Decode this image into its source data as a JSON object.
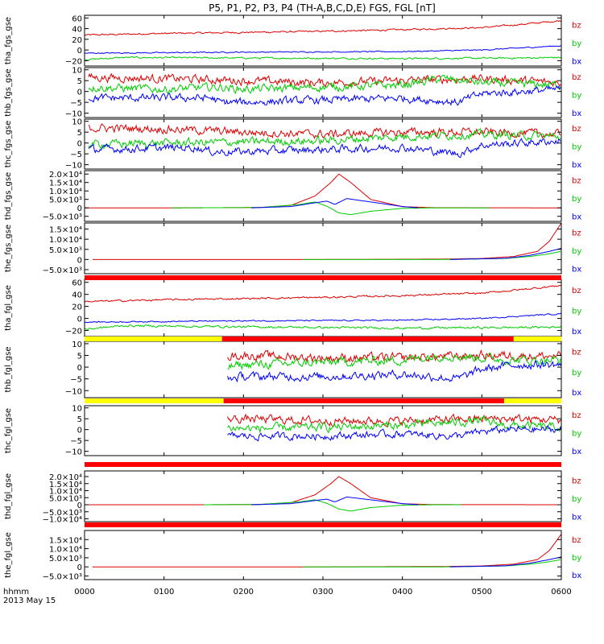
{
  "title": "P5, P1, P2, P3, P4 (TH-A,B,C,D,E) FGS, FGL [nT]",
  "colors": {
    "bx": "#0000ff",
    "by": "#00cc00",
    "bz": "#dd0000",
    "bar_red": "#ff0000",
    "bar_yellow": "#ffff00"
  },
  "time_axis": {
    "header_line1": "hhmm",
    "header_line2": "2013 May 15",
    "ticks": [
      "0000",
      "0100",
      "0200",
      "0300",
      "0400",
      "0500",
      "0600"
    ],
    "range_hours": [
      0,
      6
    ]
  },
  "chart_data": [
    {
      "type": "line",
      "ylabel": "tha_fgs_gse",
      "yticks": [
        {
          "v": 60,
          "t": "60"
        },
        {
          "v": 40,
          "t": "40"
        },
        {
          "v": 20,
          "t": "20"
        },
        {
          "v": 0,
          "t": "0"
        },
        {
          "v": -20,
          "t": "−20"
        }
      ],
      "ylim": [
        -30,
        65
      ],
      "legend": [
        "bz",
        "by",
        "bx"
      ],
      "series": [
        {
          "name": "bz",
          "x": [
            0,
            1,
            2,
            3,
            4,
            5,
            5.5,
            6
          ],
          "y": [
            28,
            31,
            33,
            35,
            38,
            42,
            48,
            55
          ],
          "noise": 1.2
        },
        {
          "name": "by",
          "x": [
            0,
            0.5,
            2,
            4,
            5.5,
            6
          ],
          "y": [
            -18,
            -14,
            -15,
            -16,
            -15,
            -14
          ],
          "noise": 1.2
        },
        {
          "name": "bx",
          "x": [
            0,
            2,
            4,
            5,
            6
          ],
          "y": [
            -6,
            -4,
            -3,
            0,
            8
          ],
          "noise": 0.8
        }
      ]
    },
    {
      "type": "line",
      "ylabel": "thb_fgs_gse",
      "yticks": [
        {
          "v": 10,
          "t": "10"
        },
        {
          "v": 5,
          "t": "5"
        },
        {
          "v": 0,
          "t": "0"
        },
        {
          "v": -5,
          "t": "−5"
        },
        {
          "v": -10,
          "t": "−10"
        }
      ],
      "ylim": [
        -12,
        11
      ],
      "legend": [
        "bz",
        "by",
        "bx"
      ],
      "series": [
        {
          "name": "bz",
          "x": [
            0.05,
            1,
            2,
            3,
            4,
            5,
            6
          ],
          "y": [
            6.5,
            6,
            5,
            4,
            5,
            6,
            4
          ],
          "noise": 1.5
        },
        {
          "name": "by",
          "x": [
            0.05,
            1,
            1.7,
            2,
            3,
            4,
            4.5,
            5,
            6
          ],
          "y": [
            2,
            1,
            2,
            1,
            2,
            3,
            6,
            4,
            3
          ],
          "noise": 1.5
        },
        {
          "name": "bx",
          "x": [
            0.05,
            1,
            1.6,
            1.7,
            2,
            3,
            4,
            4.7,
            5,
            6
          ],
          "y": [
            -3,
            -3,
            -3,
            -5,
            -5,
            -4,
            -3,
            -5,
            -1,
            1
          ],
          "noise": 1.4
        }
      ]
    },
    {
      "type": "line",
      "ylabel": "thc_fgs_gse",
      "yticks": [
        {
          "v": 10,
          "t": "10"
        },
        {
          "v": 5,
          "t": "5"
        },
        {
          "v": 0,
          "t": "0"
        },
        {
          "v": -5,
          "t": "−5"
        },
        {
          "v": -10,
          "t": "−10"
        }
      ],
      "ylim": [
        -12,
        11
      ],
      "legend": [
        "bz",
        "by",
        "bx"
      ],
      "series": [
        {
          "name": "bz",
          "x": [
            0.05,
            1,
            2,
            3,
            4,
            5,
            6
          ],
          "y": [
            7,
            6.5,
            5,
            4,
            5,
            5,
            4
          ],
          "noise": 1.5
        },
        {
          "name": "by",
          "x": [
            0.05,
            1,
            2,
            3,
            4,
            5,
            6
          ],
          "y": [
            -0.5,
            0,
            0.5,
            1,
            3,
            4,
            3
          ],
          "noise": 1.5
        },
        {
          "name": "bx",
          "x": [
            0.05,
            1.4,
            1.6,
            2,
            3,
            4,
            4.7,
            5,
            6
          ],
          "y": [
            -3,
            -2,
            -4,
            -4,
            -3,
            -2,
            -5,
            -1,
            1
          ],
          "noise": 1.4
        }
      ]
    },
    {
      "type": "line",
      "ylabel": "thd_fgs_gse",
      "yticks": [
        {
          "v": 20000,
          "t": "2.0×10⁴"
        },
        {
          "v": 15000,
          "t": "1.5×10⁴"
        },
        {
          "v": 10000,
          "t": "1.0×10⁴"
        },
        {
          "v": 5000,
          "t": "5.0×10³"
        },
        {
          "v": 0,
          "t": "0"
        },
        {
          "v": -5000,
          "t": "−5.0×10³"
        }
      ],
      "ylim": [
        -8000,
        22000
      ],
      "legend": [
        "bz",
        "by",
        "bx"
      ],
      "series": [
        {
          "name": "bz",
          "x": [
            0,
            1.1,
            2.2,
            2.6,
            2.9,
            3.1,
            3.2,
            3.35,
            3.6,
            4,
            4.4,
            6
          ],
          "y": [
            0,
            0,
            200,
            1500,
            7000,
            15000,
            20000,
            15000,
            5000,
            700,
            100,
            0
          ],
          "noise": 0
        },
        {
          "name": "by",
          "x": [
            1.1,
            2.2,
            2.7,
            2.9,
            3.05,
            3.2,
            3.35,
            3.6,
            4,
            4.4,
            5.1
          ],
          "y": [
            0,
            200,
            2000,
            3500,
            1000,
            -3000,
            -4000,
            -2000,
            -300,
            0,
            0
          ],
          "noise": 0
        },
        {
          "name": "bx",
          "x": [
            2.1,
            2.6,
            2.9,
            3.05,
            3.15,
            3.3,
            3.6,
            4,
            4.2
          ],
          "y": [
            0,
            800,
            3000,
            4000,
            2000,
            5500,
            3500,
            800,
            0
          ],
          "noise": 0
        }
      ]
    },
    {
      "type": "line",
      "ylabel": "the_fgs_gse",
      "yticks": [
        {
          "v": 15000,
          "t": "1.5×10⁴"
        },
        {
          "v": 10000,
          "t": "1.0×10⁴"
        },
        {
          "v": 5000,
          "t": "5.0×10³"
        },
        {
          "v": 0,
          "t": "0"
        },
        {
          "v": -5000,
          "t": "−5.0×10³"
        }
      ],
      "ylim": [
        -7000,
        18000
      ],
      "legend": [
        "bz",
        "by",
        "bx"
      ],
      "series": [
        {
          "name": "bz",
          "x": [
            0.1,
            3,
            4.5,
            5,
            5.4,
            5.7,
            5.85,
            6
          ],
          "y": [
            0,
            0,
            200,
            500,
            1500,
            4000,
            9000,
            18000
          ],
          "noise": 0
        },
        {
          "name": "by",
          "x": [
            2.75,
            4.5,
            5.3,
            5.6,
            5.8,
            6
          ],
          "y": [
            0,
            0,
            500,
            1500,
            2500,
            4000
          ],
          "noise": 0
        },
        {
          "name": "bx",
          "x": [
            4.6,
            5.3,
            5.6,
            5.85,
            6
          ],
          "y": [
            0,
            600,
            2000,
            4000,
            5500
          ],
          "noise": 0
        }
      ]
    },
    {
      "type": "line",
      "ylabel": "tha_fgl_gse",
      "yticks": [
        {
          "v": 60,
          "t": "60"
        },
        {
          "v": 40,
          "t": "40"
        },
        {
          "v": 20,
          "t": "20"
        },
        {
          "v": 0,
          "t": "0"
        },
        {
          "v": -20,
          "t": "−20"
        }
      ],
      "ylim": [
        -30,
        65
      ],
      "legend": [
        "bz",
        "by",
        "bx"
      ],
      "series": [
        {
          "name": "bz",
          "x": [
            0,
            1,
            2,
            3,
            4,
            5,
            5.5,
            6
          ],
          "y": [
            28,
            31,
            33,
            35,
            38,
            42,
            48,
            55
          ],
          "noise": 1.2
        },
        {
          "name": "by",
          "x": [
            0,
            0.5,
            2,
            4,
            5.5,
            6
          ],
          "y": [
            -18,
            -12,
            -14,
            -16,
            -15,
            -14
          ],
          "noise": 1.4
        },
        {
          "name": "bx",
          "x": [
            0,
            2,
            4,
            5,
            6
          ],
          "y": [
            -6,
            -4,
            -3,
            0,
            8
          ],
          "noise": 0.8
        }
      ]
    },
    {
      "type": "line",
      "ylabel": "thb_fgl_gse",
      "yticks": [
        {
          "v": 10,
          "t": "10"
        },
        {
          "v": 5,
          "t": "5"
        },
        {
          "v": 0,
          "t": "0"
        },
        {
          "v": -5,
          "t": "−5"
        },
        {
          "v": -10,
          "t": "−10"
        }
      ],
      "ylim": [
        -13,
        11
      ],
      "legend": [
        "bz",
        "by",
        "bx"
      ],
      "series": [
        {
          "name": "bz",
          "x": [
            1.8,
            2,
            3,
            4,
            5,
            5.4,
            6
          ],
          "y": [
            5,
            5,
            4,
            4,
            5,
            5,
            4.5
          ],
          "noise": 1.5
        },
        {
          "name": "by",
          "x": [
            1.8,
            2,
            3,
            4,
            4.5,
            5,
            5.4,
            6
          ],
          "y": [
            0,
            1,
            2,
            3,
            5,
            4,
            3,
            3
          ],
          "noise": 1.5
        },
        {
          "name": "bx",
          "x": [
            1.8,
            2,
            3,
            4,
            4.7,
            5,
            5.4,
            6
          ],
          "y": [
            -5,
            -4,
            -4,
            -3,
            -5,
            -1,
            1,
            1
          ],
          "noise": 1.4
        }
      ]
    },
    {
      "type": "line",
      "ylabel": "thc_fgl_gse",
      "yticks": [
        {
          "v": 10,
          "t": "10"
        },
        {
          "v": 5,
          "t": "5"
        },
        {
          "v": 0,
          "t": "0"
        },
        {
          "v": -5,
          "t": "−5"
        },
        {
          "v": -10,
          "t": "−10"
        }
      ],
      "ylim": [
        -12,
        11
      ],
      "legend": [
        "bz",
        "by",
        "bx"
      ],
      "series": [
        {
          "name": "bz",
          "x": [
            1.8,
            2,
            3,
            4,
            5,
            5.3,
            6
          ],
          "y": [
            5,
            5,
            4,
            4,
            5,
            5,
            4.5
          ],
          "noise": 1.5
        },
        {
          "name": "by",
          "x": [
            1.8,
            2,
            3,
            4,
            5,
            5.3,
            6
          ],
          "y": [
            1,
            0.5,
            1,
            2,
            4,
            2,
            1
          ],
          "noise": 1.5
        },
        {
          "name": "bx",
          "x": [
            1.8,
            2,
            3,
            4,
            4.7,
            5,
            5.3,
            6
          ],
          "y": [
            -3,
            -3,
            -3,
            -2,
            -3,
            -1,
            0,
            0
          ],
          "noise": 1.3
        }
      ]
    },
    {
      "type": "line",
      "ylabel": "thd_fgl_gse",
      "yticks": [
        {
          "v": 20000,
          "t": "2.0×10⁴"
        },
        {
          "v": 15000,
          "t": "1.5×10⁴"
        },
        {
          "v": 10000,
          "t": "1.0×10⁴"
        },
        {
          "v": 5000,
          "t": "5.0×10³"
        },
        {
          "v": 0,
          "t": "0"
        },
        {
          "v": -5000,
          "t": "−5.0×10³"
        },
        {
          "v": -10000,
          "t": "−1.0×10⁴"
        }
      ],
      "ylim": [
        -12000,
        24000
      ],
      "legend": [
        "bz",
        "by",
        "bx"
      ],
      "series": [
        {
          "name": "bz",
          "x": [
            0,
            1.5,
            2.2,
            2.6,
            2.9,
            3.1,
            3.2,
            3.35,
            3.6,
            4,
            4.4,
            6
          ],
          "y": [
            0,
            0,
            200,
            1500,
            7000,
            15000,
            20000,
            15000,
            5000,
            700,
            100,
            0
          ],
          "noise": 0
        },
        {
          "name": "by",
          "x": [
            1.5,
            2.2,
            2.7,
            2.9,
            3.05,
            3.2,
            3.35,
            3.6,
            4,
            4.4,
            4.75
          ],
          "y": [
            0,
            200,
            2000,
            3500,
            1000,
            -3000,
            -4500,
            -2000,
            -300,
            0,
            0
          ],
          "noise": 0
        },
        {
          "name": "bx",
          "x": [
            2.1,
            2.6,
            2.9,
            3.05,
            3.15,
            3.3,
            3.6,
            4,
            4.2
          ],
          "y": [
            0,
            800,
            3000,
            4000,
            2000,
            5500,
            3500,
            800,
            0
          ],
          "noise": 0
        }
      ]
    },
    {
      "type": "line",
      "ylabel": "the_fgl_gse",
      "yticks": [
        {
          "v": 15000,
          "t": "1.5×10⁴"
        },
        {
          "v": 10000,
          "t": "1.0×10⁴"
        },
        {
          "v": 5000,
          "t": "5.0×10³"
        },
        {
          "v": 0,
          "t": "0"
        },
        {
          "v": -5000,
          "t": "−5.0×10³"
        }
      ],
      "ylim": [
        -7000,
        20000
      ],
      "legend": [
        "bz",
        "by",
        "bx"
      ],
      "series": [
        {
          "name": "bz",
          "x": [
            0.1,
            3,
            4.5,
            5,
            5.4,
            5.7,
            5.85,
            6
          ],
          "y": [
            0,
            0,
            200,
            500,
            1500,
            4000,
            9000,
            18000
          ],
          "noise": 0
        },
        {
          "name": "by",
          "x": [
            2.75,
            4.5,
            5.3,
            5.6,
            5.8,
            6
          ],
          "y": [
            0,
            0,
            500,
            1500,
            2500,
            4000
          ],
          "noise": 0
        },
        {
          "name": "bx",
          "x": [
            4.6,
            5.3,
            5.6,
            5.85,
            6
          ],
          "y": [
            0,
            600,
            2000,
            4000,
            5500
          ],
          "noise": 0
        }
      ]
    }
  ],
  "mode_bars": [
    {
      "segments": [
        {
          "x0": 0,
          "x1": 6,
          "c": "red"
        }
      ]
    },
    {
      "segments": [
        {
          "x0": 0,
          "x1": 1.73,
          "c": "yellow"
        },
        {
          "x0": 1.73,
          "x1": 5.4,
          "c": "red"
        },
        {
          "x0": 5.4,
          "x1": 6,
          "c": "yellow"
        }
      ]
    },
    {
      "segments": [
        {
          "x0": 0,
          "x1": 1.75,
          "c": "yellow"
        },
        {
          "x0": 1.75,
          "x1": 5.28,
          "c": "red"
        },
        {
          "x0": 5.28,
          "x1": 6,
          "c": "yellow"
        }
      ]
    },
    {
      "segments": [
        {
          "x0": 0,
          "x1": 6,
          "c": "red"
        }
      ]
    },
    {
      "segments": [
        {
          "x0": 0,
          "x1": 6,
          "c": "red"
        }
      ]
    }
  ]
}
